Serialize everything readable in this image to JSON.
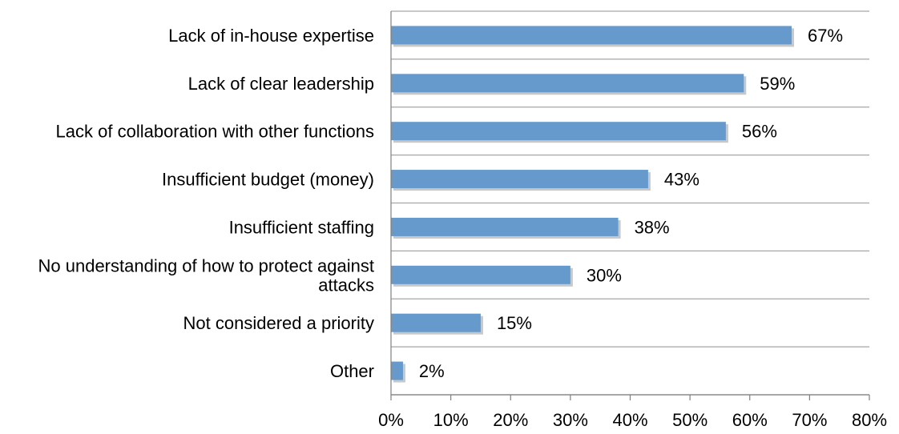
{
  "chart_data": {
    "type": "bar",
    "orientation": "horizontal",
    "categories": [
      [
        "Lack of in-house expertise"
      ],
      [
        "Lack of clear leadership"
      ],
      [
        "Lack of collaboration with other functions"
      ],
      [
        "Insufficient budget (money)"
      ],
      [
        "Insufficient staffing"
      ],
      [
        "No understanding of how to protect against",
        "attacks"
      ],
      [
        "Not considered a priority"
      ],
      [
        "Other"
      ]
    ],
    "values": [
      67,
      59,
      56,
      43,
      38,
      30,
      15,
      2
    ],
    "data_labels": [
      "67%",
      "59%",
      "56%",
      "43%",
      "38%",
      "30%",
      "15%",
      "2%"
    ],
    "xlim": [
      0,
      80
    ],
    "x_ticks": [
      0,
      10,
      20,
      30,
      40,
      50,
      60,
      70,
      80
    ],
    "x_tick_labels": [
      "0%",
      "10%",
      "20%",
      "30%",
      "40%",
      "50%",
      "60%",
      "70%",
      "80%"
    ],
    "grid": "horizontal category separators",
    "bar_color": "#6699CC",
    "bar_shadow_color": "#C8C8C8",
    "grid_color": "#A6A6A6",
    "axis_color": "#808080"
  }
}
